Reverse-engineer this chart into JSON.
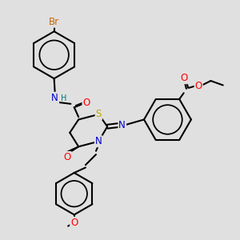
{
  "bg_color": "#e0e0e0",
  "bond_color": "#000000",
  "bond_width": 1.5,
  "colors": {
    "N": "#0000cc",
    "O": "#ff0000",
    "S": "#bbaa00",
    "Br": "#cc6600",
    "H": "#007777",
    "C": "#000000"
  },
  "font_size": 8.5
}
